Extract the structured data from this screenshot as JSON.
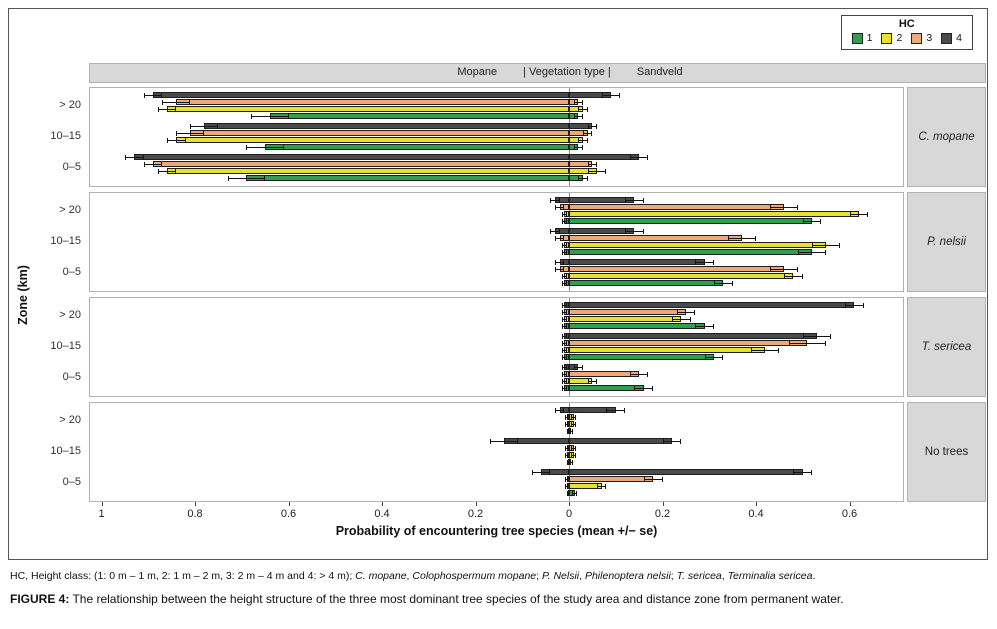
{
  "chart_data": {
    "type": "bar",
    "variant": "horizontal-diverging-grouped",
    "title_strip": {
      "left_region": "Mopane",
      "center": "| Vegetation type |",
      "right_region": "Sandveld"
    },
    "xlabel": "Probability of encountering tree species (mean +/− se)",
    "ylabel": "Zone (km)",
    "x_ticks": [
      {
        "label": "1",
        "value": -1
      },
      {
        "label": "0.8",
        "value": -0.8
      },
      {
        "label": "0.6",
        "value": -0.6
      },
      {
        "label": "0.4",
        "value": -0.4
      },
      {
        "label": "0.2",
        "value": -0.2
      },
      {
        "label": "0",
        "value": 0
      },
      {
        "label": "0.2",
        "value": 0.2
      },
      {
        "label": "0.4",
        "value": 0.4
      },
      {
        "label": "0.6",
        "value": 0.6
      }
    ],
    "x_range": {
      "mopane_max": 1.0,
      "sandveld_max": 0.67
    },
    "grid": false,
    "legend_position": "top-right",
    "legend": {
      "title": "HC",
      "items": [
        {
          "label": "1",
          "color": "#2da04e"
        },
        {
          "label": "2",
          "color": "#e5e233"
        },
        {
          "label": "3",
          "color": "#efa878"
        },
        {
          "label": "4",
          "color": "#4a4a4a"
        }
      ]
    },
    "height_class_colors": {
      "1": "#2da04e",
      "2": "#e5e233",
      "3": "#efa878",
      "4": "#4a4a4a"
    },
    "bar_order_top_to_bottom": [
      "4",
      "3",
      "2",
      "1"
    ],
    "zones": [
      "> 20",
      "10–15",
      "0–5"
    ],
    "facets": [
      {
        "label": "C. mopane",
        "italic": true,
        "zones": [
          {
            "zone": "> 20",
            "bars": [
              {
                "hc": "4",
                "mopane": 0.89,
                "mopane_se": 0.02,
                "sandveld": 0.09,
                "sandveld_se": 0.02
              },
              {
                "hc": "3",
                "mopane": 0.84,
                "mopane_se": 0.03,
                "sandveld": 0.02,
                "sandveld_se": 0.01
              },
              {
                "hc": "2",
                "mopane": 0.86,
                "mopane_se": 0.02,
                "sandveld": 0.03,
                "sandveld_se": 0.01
              },
              {
                "hc": "1",
                "mopane": 0.64,
                "mopane_se": 0.04,
                "sandveld": 0.02,
                "sandveld_se": 0.01
              }
            ]
          },
          {
            "zone": "10–15",
            "bars": [
              {
                "hc": "4",
                "mopane": 0.78,
                "mopane_se": 0.03,
                "sandveld": 0.05,
                "sandveld_se": 0.01
              },
              {
                "hc": "3",
                "mopane": 0.81,
                "mopane_se": 0.03,
                "sandveld": 0.04,
                "sandveld_se": 0.01
              },
              {
                "hc": "2",
                "mopane": 0.84,
                "mopane_se": 0.02,
                "sandveld": 0.03,
                "sandveld_se": 0.01
              },
              {
                "hc": "1",
                "mopane": 0.65,
                "mopane_se": 0.04,
                "sandveld": 0.02,
                "sandveld_se": 0.01
              }
            ]
          },
          {
            "zone": "0–5",
            "bars": [
              {
                "hc": "4",
                "mopane": 0.93,
                "mopane_se": 0.02,
                "sandveld": 0.15,
                "sandveld_se": 0.02
              },
              {
                "hc": "3",
                "mopane": 0.89,
                "mopane_se": 0.02,
                "sandveld": 0.05,
                "sandveld_se": 0.01
              },
              {
                "hc": "2",
                "mopane": 0.86,
                "mopane_se": 0.02,
                "sandveld": 0.06,
                "sandveld_se": 0.02
              },
              {
                "hc": "1",
                "mopane": 0.69,
                "mopane_se": 0.04,
                "sandveld": 0.03,
                "sandveld_se": 0.01
              }
            ]
          }
        ]
      },
      {
        "label": "P. nelsii",
        "italic": true,
        "zones": [
          {
            "zone": "> 20",
            "bars": [
              {
                "hc": "4",
                "mopane": 0.03,
                "mopane_se": 0.01,
                "sandveld": 0.14,
                "sandveld_se": 0.02
              },
              {
                "hc": "3",
                "mopane": 0.02,
                "mopane_se": 0.01,
                "sandveld": 0.46,
                "sandveld_se": 0.03
              },
              {
                "hc": "2",
                "mopane": 0.01,
                "mopane_se": 0.005,
                "sandveld": 0.62,
                "sandveld_se": 0.02
              },
              {
                "hc": "1",
                "mopane": 0.01,
                "mopane_se": 0.005,
                "sandveld": 0.52,
                "sandveld_se": 0.02
              }
            ]
          },
          {
            "zone": "10–15",
            "bars": [
              {
                "hc": "4",
                "mopane": 0.03,
                "mopane_se": 0.01,
                "sandveld": 0.14,
                "sandveld_se": 0.02
              },
              {
                "hc": "3",
                "mopane": 0.02,
                "mopane_se": 0.01,
                "sandveld": 0.37,
                "sandveld_se": 0.03
              },
              {
                "hc": "2",
                "mopane": 0.01,
                "mopane_se": 0.005,
                "sandveld": 0.55,
                "sandveld_se": 0.03
              },
              {
                "hc": "1",
                "mopane": 0.01,
                "mopane_se": 0.005,
                "sandveld": 0.52,
                "sandveld_se": 0.03
              }
            ]
          },
          {
            "zone": "0–5",
            "bars": [
              {
                "hc": "4",
                "mopane": 0.02,
                "mopane_se": 0.01,
                "sandveld": 0.29,
                "sandveld_se": 0.02
              },
              {
                "hc": "3",
                "mopane": 0.02,
                "mopane_se": 0.01,
                "sandveld": 0.46,
                "sandveld_se": 0.03
              },
              {
                "hc": "2",
                "mopane": 0.01,
                "mopane_se": 0.005,
                "sandveld": 0.48,
                "sandveld_se": 0.02
              },
              {
                "hc": "1",
                "mopane": 0.01,
                "mopane_se": 0.005,
                "sandveld": 0.33,
                "sandveld_se": 0.02
              }
            ]
          }
        ]
      },
      {
        "label": "T. sericea",
        "italic": true,
        "zones": [
          {
            "zone": "> 20",
            "bars": [
              {
                "hc": "4",
                "mopane": 0.01,
                "mopane_se": 0.005,
                "sandveld": 0.61,
                "sandveld_se": 0.02
              },
              {
                "hc": "3",
                "mopane": 0.01,
                "mopane_se": 0.005,
                "sandveld": 0.25,
                "sandveld_se": 0.02
              },
              {
                "hc": "2",
                "mopane": 0.01,
                "mopane_se": 0.005,
                "sandveld": 0.24,
                "sandveld_se": 0.02
              },
              {
                "hc": "1",
                "mopane": 0.01,
                "mopane_se": 0.005,
                "sandveld": 0.29,
                "sandveld_se": 0.02
              }
            ]
          },
          {
            "zone": "10–15",
            "bars": [
              {
                "hc": "4",
                "mopane": 0.01,
                "mopane_se": 0.005,
                "sandveld": 0.53,
                "sandveld_se": 0.03
              },
              {
                "hc": "3",
                "mopane": 0.01,
                "mopane_se": 0.005,
                "sandveld": 0.51,
                "sandveld_se": 0.04
              },
              {
                "hc": "2",
                "mopane": 0.01,
                "mopane_se": 0.005,
                "sandveld": 0.42,
                "sandveld_se": 0.03
              },
              {
                "hc": "1",
                "mopane": 0.01,
                "mopane_se": 0.005,
                "sandveld": 0.31,
                "sandveld_se": 0.02
              }
            ]
          },
          {
            "zone": "0–5",
            "bars": [
              {
                "hc": "4",
                "mopane": 0.01,
                "mopane_se": 0.005,
                "sandveld": 0.02,
                "sandveld_se": 0.01
              },
              {
                "hc": "3",
                "mopane": 0.01,
                "mopane_se": 0.005,
                "sandveld": 0.15,
                "sandveld_se": 0.02
              },
              {
                "hc": "2",
                "mopane": 0.01,
                "mopane_se": 0.005,
                "sandveld": 0.05,
                "sandveld_se": 0.01
              },
              {
                "hc": "1",
                "mopane": 0.01,
                "mopane_se": 0.005,
                "sandveld": 0.16,
                "sandveld_se": 0.02
              }
            ]
          }
        ]
      },
      {
        "label": "No trees",
        "italic": false,
        "zones": [
          {
            "zone": "> 20",
            "bars": [
              {
                "hc": "4",
                "mopane": 0.02,
                "mopane_se": 0.01,
                "sandveld": 0.1,
                "sandveld_se": 0.02
              },
              {
                "hc": "3",
                "mopane": 0.005,
                "mopane_se": 0.003,
                "sandveld": 0.01,
                "sandveld_se": 0.005
              },
              {
                "hc": "2",
                "mopane": 0.005,
                "mopane_se": 0.003,
                "sandveld": 0.01,
                "sandveld_se": 0.005
              },
              {
                "hc": "1",
                "mopane": 0.003,
                "mopane_se": 0.002,
                "sandveld": 0.005,
                "sandveld_se": 0.003
              }
            ]
          },
          {
            "zone": "10–15",
            "bars": [
              {
                "hc": "4",
                "mopane": 0.14,
                "mopane_se": 0.03,
                "sandveld": 0.22,
                "sandveld_se": 0.02
              },
              {
                "hc": "3",
                "mopane": 0.005,
                "mopane_se": 0.003,
                "sandveld": 0.01,
                "sandveld_se": 0.005
              },
              {
                "hc": "2",
                "mopane": 0.005,
                "mopane_se": 0.003,
                "sandveld": 0.01,
                "sandveld_se": 0.005
              },
              {
                "hc": "1",
                "mopane": 0.003,
                "mopane_se": 0.002,
                "sandveld": 0.005,
                "sandveld_se": 0.003
              }
            ]
          },
          {
            "zone": "0–5",
            "bars": [
              {
                "hc": "4",
                "mopane": 0.06,
                "mopane_se": 0.02,
                "sandveld": 0.5,
                "sandveld_se": 0.02
              },
              {
                "hc": "3",
                "mopane": 0.005,
                "mopane_se": 0.003,
                "sandveld": 0.18,
                "sandveld_se": 0.02
              },
              {
                "hc": "2",
                "mopane": 0.005,
                "mopane_se": 0.003,
                "sandveld": 0.07,
                "sandveld_se": 0.01
              },
              {
                "hc": "1",
                "mopane": 0.003,
                "mopane_se": 0.002,
                "sandveld": 0.012,
                "sandveld_se": 0.005
              }
            ]
          }
        ]
      }
    ]
  },
  "captions": {
    "definition_line": [
      {
        "text": "HC, Height class: (1: 0 m – 1 m, 2: 1 m – 2 m, 3: 2 m – 4 m and 4: > 4 m); ",
        "italic": false
      },
      {
        "text": "C. mopane",
        "italic": true
      },
      {
        "text": ", ",
        "italic": false
      },
      {
        "text": "Colophospermum mopane",
        "italic": true
      },
      {
        "text": "; ",
        "italic": false
      },
      {
        "text": "P. Nelsii",
        "italic": true
      },
      {
        "text": ", ",
        "italic": false
      },
      {
        "text": "Philenoptera nelsii",
        "italic": true
      },
      {
        "text": "; ",
        "italic": false
      },
      {
        "text": "T. sericea",
        "italic": true
      },
      {
        "text": ", ",
        "italic": false
      },
      {
        "text": "Terminalia sericea",
        "italic": true
      },
      {
        "text": ".",
        "italic": false
      }
    ],
    "figure_line": [
      {
        "text": "FIGURE 4:",
        "bold": true
      },
      {
        "text": " The relationship between the height structure of the three most dominant tree species of the study area and distance zone from permanent water.",
        "bold": false
      }
    ]
  }
}
